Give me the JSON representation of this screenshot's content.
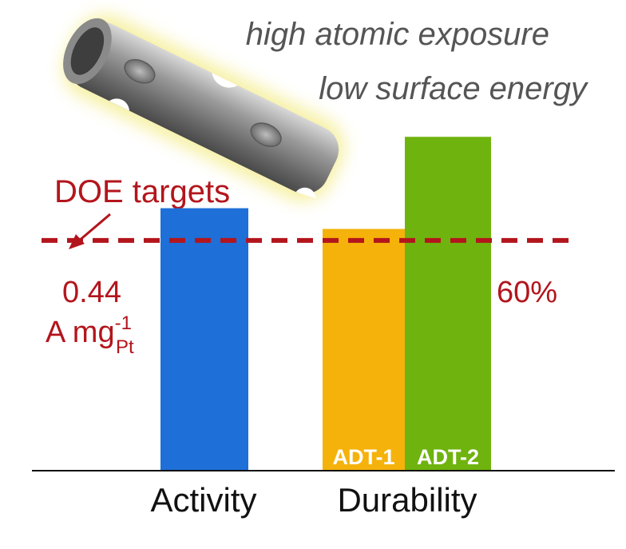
{
  "chart_data": {
    "type": "bar",
    "categories": [
      "Activity",
      "Durability"
    ],
    "series": [
      {
        "category": "Activity",
        "bar_label": "",
        "value": 1.14,
        "color": "#1f6fd8"
      },
      {
        "category": "Durability",
        "bar_label": "ADT-1",
        "value": 1.05,
        "color": "#f5b20a"
      },
      {
        "category": "Durability",
        "bar_label": "ADT-2",
        "value": 1.45,
        "color": "#6fb30f"
      }
    ],
    "reference_line": {
      "value": 1.0,
      "style": "dashed",
      "color": "#b3151c"
    },
    "ylim": [
      0,
      1.6
    ],
    "grid": false
  },
  "annotations": {
    "doe_label": "DOE targets",
    "activity_target_value": "0.44",
    "activity_target_unit_base": "A mg",
    "activity_target_unit_sup": "-1",
    "activity_target_unit_sub": "Pt",
    "durability_target": "60%",
    "caption_line1": "high atomic exposure",
    "caption_line2": "low surface energy"
  },
  "illustration": {
    "name": "nanotube-icon",
    "glow_color": "#f6f0a0"
  }
}
